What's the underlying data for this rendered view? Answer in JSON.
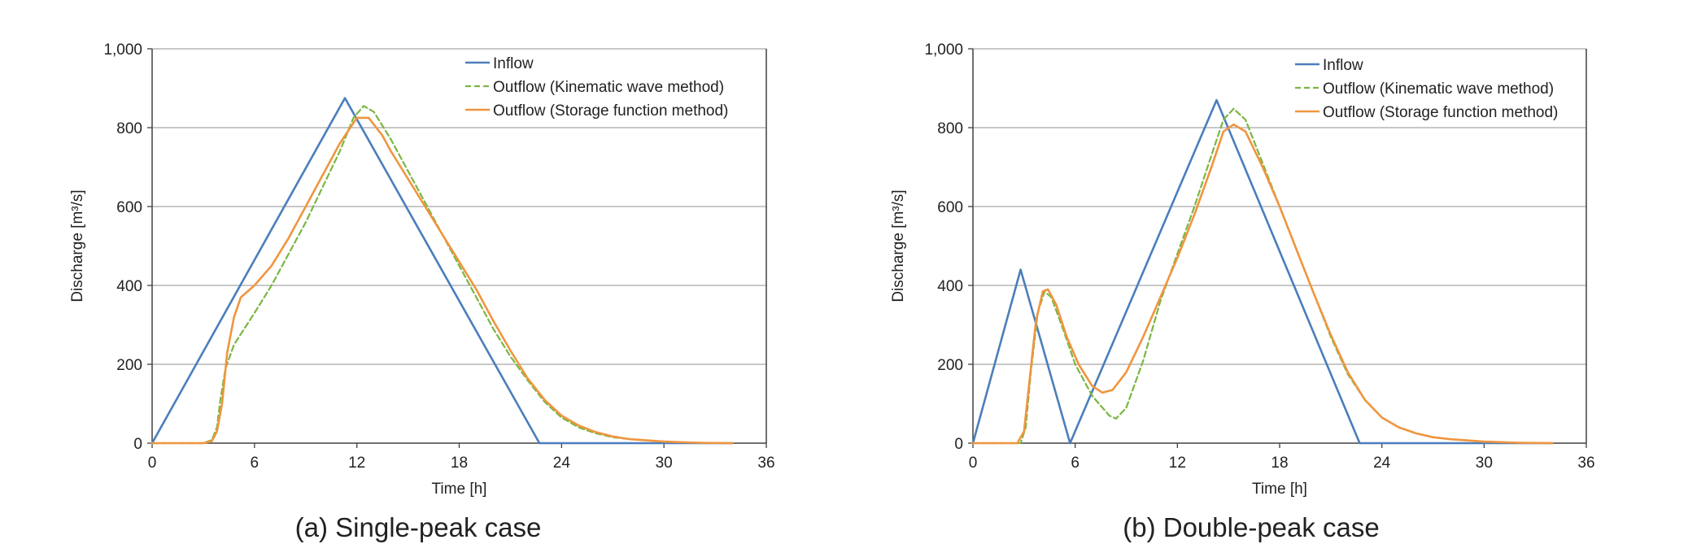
{
  "chart_data": [
    {
      "type": "line",
      "panel": "a",
      "caption": "(a) Single-peak case",
      "xlabel": "Time [h]",
      "ylabel": "Discharge [m³/s]",
      "xlim": [
        0,
        36
      ],
      "ylim": [
        0,
        1000
      ],
      "xticks": [
        0,
        6,
        12,
        18,
        24,
        30,
        36
      ],
      "xtick_labels": [
        "0",
        "6",
        "12",
        "18",
        "24",
        "30",
        "36"
      ],
      "yticks": [
        0,
        200,
        400,
        600,
        800,
        1000
      ],
      "ytick_labels": [
        "0",
        "200",
        "400",
        "600",
        "800",
        "1,000"
      ],
      "grid": "horizontal",
      "legend_position": "top-right",
      "series": [
        {
          "name": "Inflow",
          "color": "#4a7ebb",
          "dash": "solid",
          "points": [
            [
              0,
              0
            ],
            [
              11.3,
              875
            ],
            [
              22.7,
              0
            ],
            [
              34,
              0
            ]
          ]
        },
        {
          "name": "Outflow (Kinematic wave method)",
          "color": "#7bb642",
          "dash": "dashed",
          "points": [
            [
              0,
              0
            ],
            [
              3,
              0
            ],
            [
              3.5,
              8
            ],
            [
              3.8,
              40
            ],
            [
              4.0,
              110
            ],
            [
              4.3,
              190
            ],
            [
              4.8,
              250
            ],
            [
              6,
              330
            ],
            [
              7,
              400
            ],
            [
              8,
              480
            ],
            [
              9,
              560
            ],
            [
              10,
              650
            ],
            [
              11,
              740
            ],
            [
              11.8,
              825
            ],
            [
              12.4,
              855
            ],
            [
              13,
              840
            ],
            [
              14,
              770
            ],
            [
              15,
              690
            ],
            [
              16,
              610
            ],
            [
              17,
              530
            ],
            [
              18,
              450
            ],
            [
              19,
              370
            ],
            [
              20,
              290
            ],
            [
              21,
              220
            ],
            [
              22,
              160
            ],
            [
              23,
              105
            ],
            [
              24,
              65
            ],
            [
              25,
              40
            ],
            [
              26,
              25
            ],
            [
              27,
              15
            ],
            [
              28,
              10
            ],
            [
              30,
              4
            ],
            [
              32,
              1
            ],
            [
              34,
              0
            ]
          ]
        },
        {
          "name": "Outflow (Storage function method)",
          "color": "#f0953f",
          "dash": "solid",
          "points": [
            [
              0,
              0
            ],
            [
              3,
              0
            ],
            [
              3.5,
              5
            ],
            [
              3.8,
              30
            ],
            [
              4.1,
              100
            ],
            [
              4.4,
              230
            ],
            [
              4.8,
              320
            ],
            [
              5.2,
              370
            ],
            [
              6,
              400
            ],
            [
              7,
              450
            ],
            [
              8,
              520
            ],
            [
              9,
              600
            ],
            [
              10,
              680
            ],
            [
              11,
              760
            ],
            [
              12,
              825
            ],
            [
              12.7,
              825
            ],
            [
              13.5,
              780
            ],
            [
              14,
              740
            ],
            [
              15,
              670
            ],
            [
              16,
              600
            ],
            [
              17,
              530
            ],
            [
              18,
              460
            ],
            [
              19,
              390
            ],
            [
              20,
              310
            ],
            [
              21,
              235
            ],
            [
              22,
              165
            ],
            [
              23,
              110
            ],
            [
              24,
              70
            ],
            [
              25,
              45
            ],
            [
              26,
              28
            ],
            [
              27,
              17
            ],
            [
              28,
              10
            ],
            [
              30,
              4
            ],
            [
              32,
              1
            ],
            [
              34,
              0
            ]
          ]
        }
      ]
    },
    {
      "type": "line",
      "panel": "b",
      "caption": "(b) Double-peak case",
      "xlabel": "Time [h]",
      "ylabel": "Discharge [m³/s]",
      "xlim": [
        0,
        36
      ],
      "ylim": [
        0,
        1000
      ],
      "xticks": [
        0,
        6,
        12,
        18,
        24,
        30,
        36
      ],
      "xtick_labels": [
        "0",
        "6",
        "12",
        "18",
        "24",
        "30",
        "36"
      ],
      "yticks": [
        0,
        200,
        400,
        600,
        800,
        1000
      ],
      "ytick_labels": [
        "0",
        "200",
        "400",
        "600",
        "800",
        "1,000"
      ],
      "grid": "horizontal",
      "legend_position": "top-right",
      "series": [
        {
          "name": "Inflow",
          "color": "#4a7ebb",
          "dash": "solid",
          "points": [
            [
              0,
              0
            ],
            [
              2.8,
              440
            ],
            [
              5.7,
              0
            ],
            [
              14.3,
              870
            ],
            [
              22.7,
              0
            ],
            [
              34,
              0
            ]
          ]
        },
        {
          "name": "Outflow (Kinematic wave method)",
          "color": "#7bb642",
          "dash": "dashed",
          "points": [
            [
              0,
              0
            ],
            [
              2.8,
              0
            ],
            [
              3.1,
              40
            ],
            [
              3.4,
              180
            ],
            [
              3.8,
              330
            ],
            [
              4.2,
              385
            ],
            [
              4.6,
              370
            ],
            [
              5.2,
              300
            ],
            [
              6,
              200
            ],
            [
              7,
              120
            ],
            [
              8,
              70
            ],
            [
              8.4,
              62
            ],
            [
              9,
              90
            ],
            [
              10,
              210
            ],
            [
              11,
              360
            ],
            [
              12,
              480
            ],
            [
              13,
              600
            ],
            [
              14,
              730
            ],
            [
              14.7,
              820
            ],
            [
              15.3,
              848
            ],
            [
              16,
              820
            ],
            [
              17,
              710
            ],
            [
              18,
              600
            ],
            [
              19,
              490
            ],
            [
              20,
              380
            ],
            [
              21,
              270
            ],
            [
              22,
              175
            ],
            [
              23,
              110
            ],
            [
              24,
              65
            ],
            [
              25,
              40
            ],
            [
              26,
              25
            ],
            [
              27,
              15
            ],
            [
              28,
              10
            ],
            [
              30,
              4
            ],
            [
              32,
              1
            ],
            [
              34,
              0
            ]
          ]
        },
        {
          "name": "Outflow (Storage function method)",
          "color": "#f0953f",
          "dash": "solid",
          "points": [
            [
              0,
              0
            ],
            [
              2.6,
              0
            ],
            [
              3.0,
              30
            ],
            [
              3.3,
              150
            ],
            [
              3.7,
              310
            ],
            [
              4.1,
              385
            ],
            [
              4.4,
              390
            ],
            [
              4.9,
              350
            ],
            [
              5.5,
              270
            ],
            [
              6.2,
              200
            ],
            [
              7,
              145
            ],
            [
              7.6,
              128
            ],
            [
              8.2,
              135
            ],
            [
              9,
              180
            ],
            [
              10,
              270
            ],
            [
              11,
              370
            ],
            [
              12,
              470
            ],
            [
              13,
              580
            ],
            [
              14,
              700
            ],
            [
              14.7,
              790
            ],
            [
              15.3,
              808
            ],
            [
              16,
              790
            ],
            [
              17,
              700
            ],
            [
              18,
              600
            ],
            [
              19,
              490
            ],
            [
              20,
              380
            ],
            [
              21,
              275
            ],
            [
              22,
              180
            ],
            [
              23,
              110
            ],
            [
              24,
              65
            ],
            [
              25,
              40
            ],
            [
              26,
              25
            ],
            [
              27,
              15
            ],
            [
              28,
              10
            ],
            [
              30,
              4
            ],
            [
              32,
              1
            ],
            [
              34,
              0
            ]
          ]
        }
      ]
    }
  ]
}
